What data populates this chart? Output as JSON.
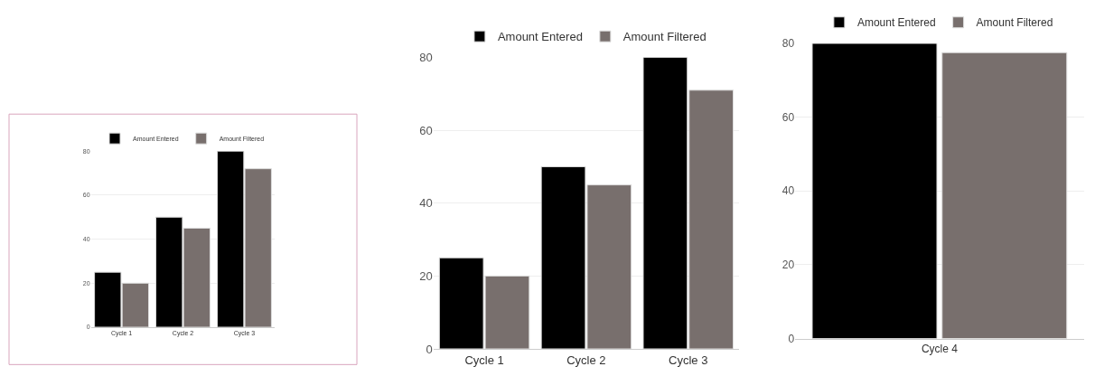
{
  "chart_data": [
    {
      "type": "bar",
      "categories": [
        "Cycle 1",
        "Cycle 2",
        "Cycle 3"
      ],
      "ylim": [
        0,
        80
      ],
      "yticks": [
        0,
        20,
        40,
        60,
        80
      ],
      "grid": "y",
      "legend": "top",
      "series": [
        {
          "name": "Amount Entered",
          "color": "#000000",
          "values": [
            25,
            50,
            80
          ]
        },
        {
          "name": "Amount Filtered",
          "color": "#786f6d",
          "values": [
            20,
            45,
            72
          ]
        }
      ]
    },
    {
      "type": "bar",
      "categories": [
        "Cycle 1",
        "Cycle 2",
        "Cycle 3"
      ],
      "ylim": [
        0,
        80
      ],
      "yticks": [
        0,
        20,
        40,
        60,
        80
      ],
      "grid": "y",
      "legend": "top",
      "series": [
        {
          "name": "Amount Entered",
          "color": "#000000",
          "values": [
            25,
            50,
            80
          ]
        },
        {
          "name": "Amount Filtered",
          "color": "#786f6d",
          "values": [
            20,
            45,
            71
          ]
        }
      ]
    },
    {
      "type": "bar",
      "categories": [
        "Cycle 4"
      ],
      "ylim": [
        0,
        80
      ],
      "yticks": [
        0,
        20,
        40,
        60,
        80
      ],
      "grid": "y",
      "legend": "top",
      "series": [
        {
          "name": "Amount Entered",
          "color": "#000000",
          "values": [
            80
          ]
        },
        {
          "name": "Amount Filtered",
          "color": "#786f6d",
          "values": [
            77.5
          ]
        }
      ]
    }
  ]
}
